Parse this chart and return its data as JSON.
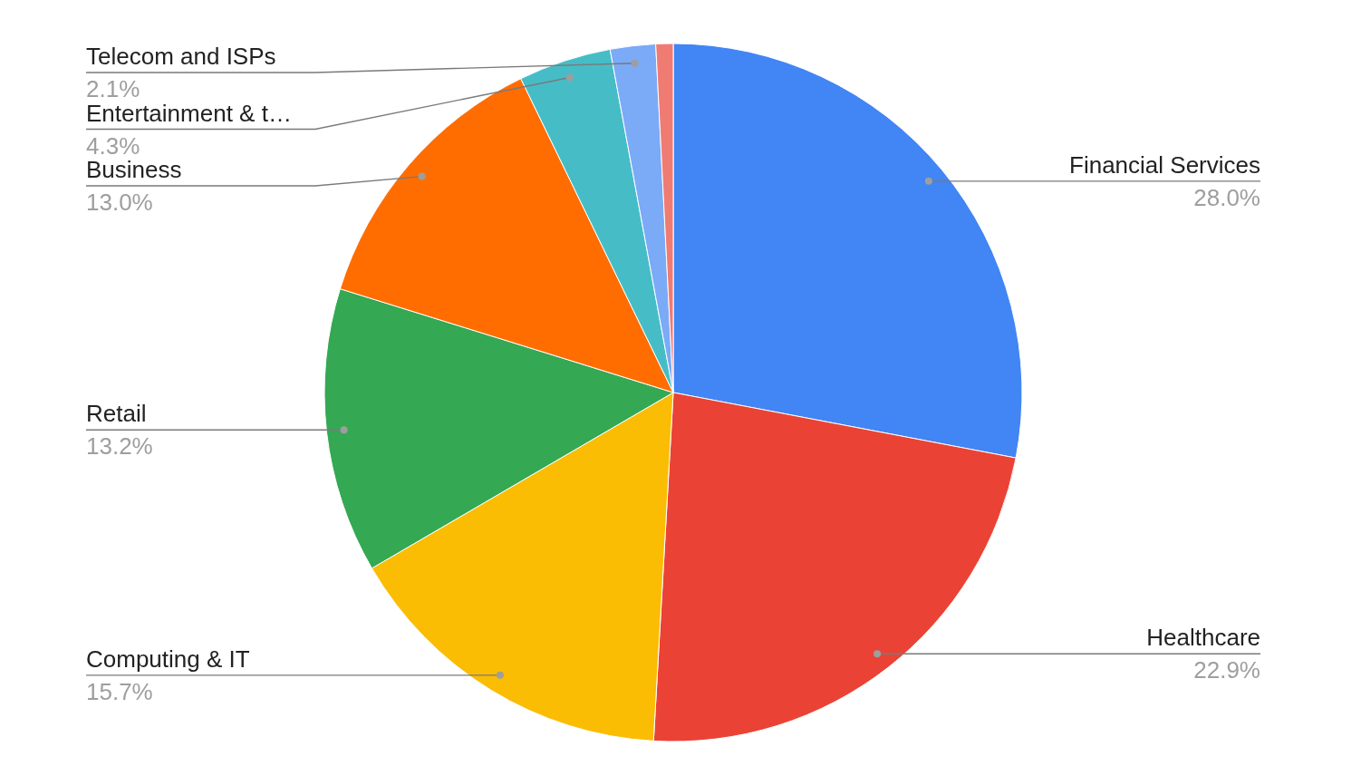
{
  "chart_data": {
    "type": "pie",
    "categories": [
      "Financial Services",
      "Healthcare",
      "Computing & IT",
      "Retail",
      "Business",
      "Entertainment & t…",
      "Telecom and ISPs",
      null
    ],
    "values": [
      28.0,
      22.9,
      15.7,
      13.2,
      13.0,
      4.3,
      2.1,
      0.8
    ],
    "colors": [
      "#4285f4",
      "#ea4335",
      "#fbbc04",
      "#34a853",
      "#ff6d01",
      "#46bdc6",
      "#7baaf7",
      "#f07b72"
    ],
    "value_labels": [
      "28.0%",
      "22.9%",
      "15.7%",
      "13.2%",
      "13.0%",
      "4.3%",
      "2.1%",
      null
    ]
  }
}
